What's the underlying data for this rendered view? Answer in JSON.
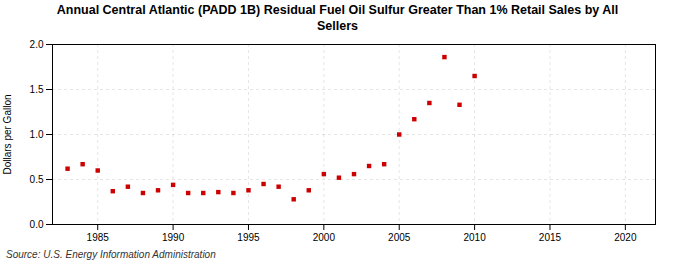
{
  "chart_data": {
    "type": "scatter",
    "title": "Annual Central Atlantic (PADD 1B) Residual Fuel Oil Sulfur Greater Than 1% Retail Sales by All\nSellers",
    "ylabel": "Dollars per Gallon",
    "source": "Source: U.S. Energy Information Administration",
    "x": [
      1983,
      1984,
      1985,
      1986,
      1987,
      1988,
      1989,
      1990,
      1991,
      1992,
      1993,
      1994,
      1995,
      1996,
      1997,
      1998,
      1999,
      2000,
      2001,
      2002,
      2003,
      2004,
      2005,
      2006,
      2007,
      2008,
      2009,
      2010
    ],
    "values": [
      0.62,
      0.67,
      0.6,
      0.37,
      0.42,
      0.35,
      0.38,
      0.44,
      0.35,
      0.35,
      0.36,
      0.35,
      0.38,
      0.45,
      0.42,
      0.28,
      0.38,
      0.56,
      0.52,
      0.56,
      0.65,
      0.67,
      1.0,
      1.17,
      1.35,
      1.86,
      1.33,
      1.65
    ],
    "color": "#cc0000",
    "marker": "square",
    "xlim": [
      1982,
      2022
    ],
    "xticks": [
      1985,
      1990,
      1995,
      2000,
      2005,
      2010,
      2015,
      2020
    ],
    "ylim": [
      0.0,
      2.0
    ],
    "yticks": [
      {
        "value": 0.0,
        "label": "0.0"
      },
      0.5,
      {
        "value": 1.0,
        "label": "1.0"
      },
      1.5,
      {
        "value": 2.0,
        "label": "2.0"
      }
    ],
    "grid": true
  }
}
